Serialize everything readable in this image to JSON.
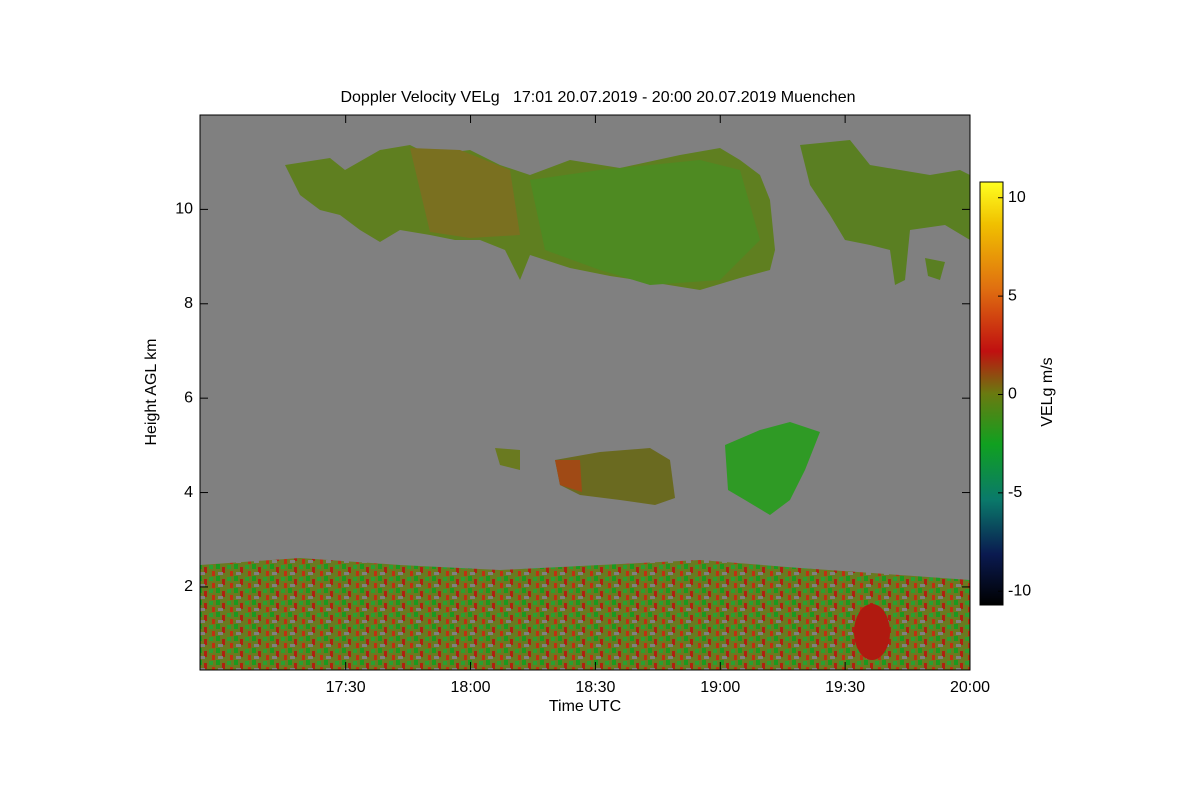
{
  "chart_data": {
    "type": "heatmap",
    "title": "Doppler Velocity VELg   17:01 20.07.2019 - 20:00 20.07.2019 Muenchen",
    "x_label": "Time UTC",
    "y_label": "Height AGL km",
    "colorbar_label": "VELg m/s",
    "xlim": [
      1015,
      1200
    ],
    "xticks": [
      {
        "value": 1050,
        "label": "17:30"
      },
      {
        "value": 1080,
        "label": "18:00"
      },
      {
        "value": 1110,
        "label": "18:30"
      },
      {
        "value": 1140,
        "label": "19:00"
      },
      {
        "value": 1170,
        "label": "19:30"
      },
      {
        "value": 1200,
        "label": "20:00"
      }
    ],
    "ylim": [
      0.24,
      12
    ],
    "yticks": [
      2,
      4,
      6,
      8,
      10
    ],
    "clim": [
      -10.7,
      10.8
    ],
    "cticks": [
      10,
      5,
      0,
      -5,
      -10
    ]
  }
}
